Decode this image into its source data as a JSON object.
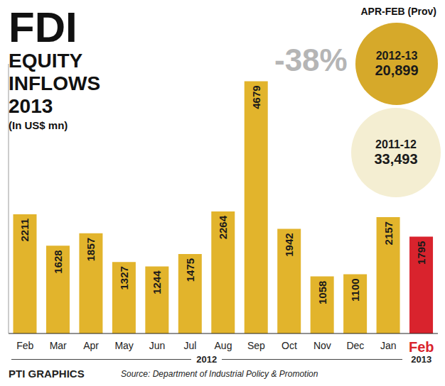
{
  "chart_data": {
    "type": "bar",
    "title": "FDI EQUITY INFLOWS 2013",
    "subtitle": "(In US$ mn)",
    "categories": [
      "Feb",
      "Mar",
      "Apr",
      "May",
      "Jun",
      "Jul",
      "Aug",
      "Sep",
      "Oct",
      "Nov",
      "Dec",
      "Jan",
      "Feb"
    ],
    "category_years": [
      "2012",
      "2012",
      "2012",
      "2012",
      "2012",
      "2012",
      "2012",
      "2012",
      "2012",
      "2012",
      "2012",
      "2012",
      "2013"
    ],
    "values": [
      2211,
      1628,
      1857,
      1327,
      1244,
      1475,
      2264,
      4679,
      1942,
      1058,
      1100,
      2157,
      1795
    ],
    "color": "#e2b42c",
    "colors": [
      "#e2b42c",
      "#e2b42c",
      "#e2b42c",
      "#e2b42c",
      "#e2b42c",
      "#e2b42c",
      "#e2b42c",
      "#e2b42c",
      "#e2b42c",
      "#e2b42c",
      "#e2b42c",
      "#e2b42c",
      "#d9232d"
    ],
    "ylim": [
      0,
      5000
    ],
    "data_labels": true,
    "tick_labels": "x",
    "grid": false,
    "annotations": {
      "period": "APR-FEB (Prov)",
      "change": {
        "value": -38,
        "label": "-38%"
      },
      "current": {
        "period": "2012-13",
        "value": 20899,
        "label": "20,899"
      },
      "previous": {
        "period": "2011-12",
        "value": 33493,
        "label": "33,493"
      }
    },
    "source": "Source: Department of Industrial Policy & Promotion",
    "credit": "PTI GRAPHICS"
  }
}
